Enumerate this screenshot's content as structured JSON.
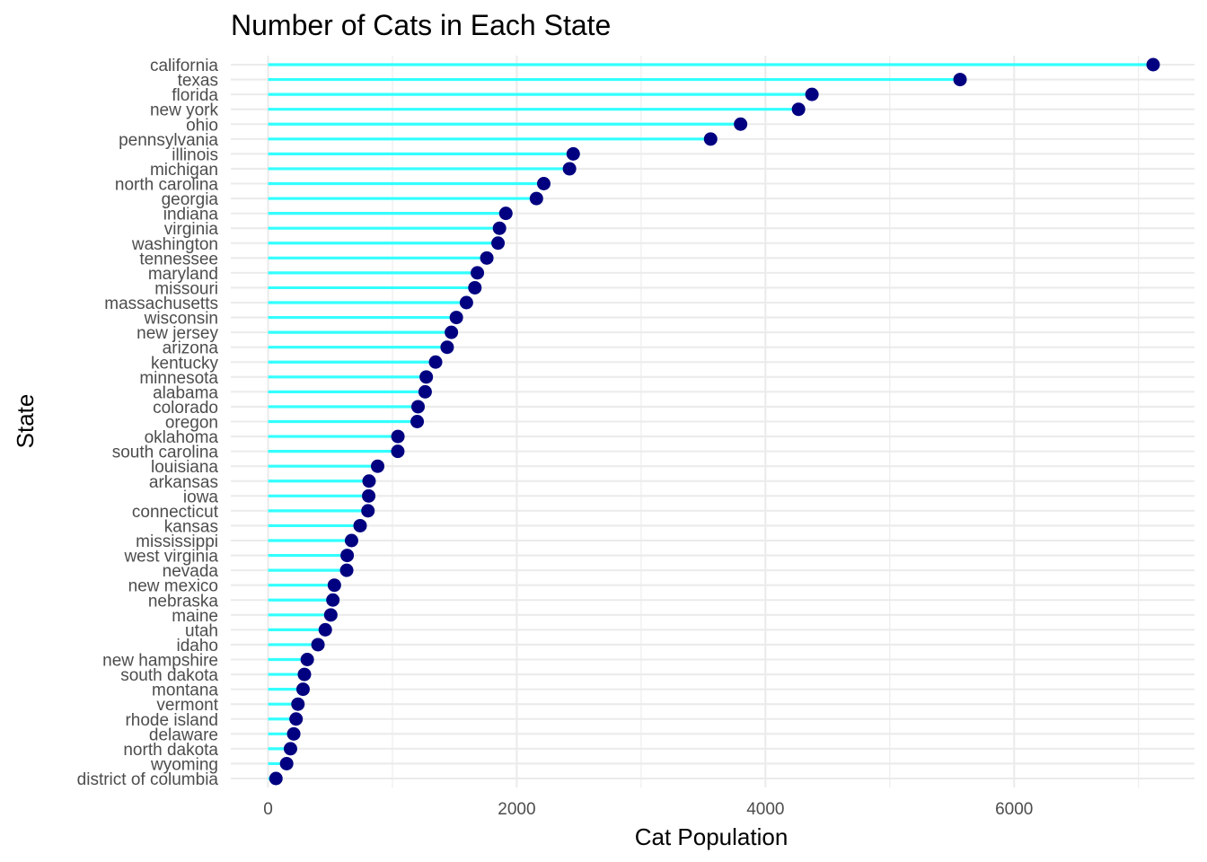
{
  "chart_data": {
    "type": "lollipop",
    "title": "Number of Cats in Each State",
    "xlabel": "Cat Population",
    "ylabel": "State",
    "xlim": [
      -300,
      7450
    ],
    "x_ticks": [
      0,
      2000,
      4000,
      6000
    ],
    "x_tick_labels": [
      "0",
      "2000",
      "4000",
      "6000"
    ],
    "grid": true,
    "stem_color": "#33ffff",
    "point_color": "#000080",
    "categories": [
      "california",
      "texas",
      "florida",
      "new york",
      "ohio",
      "pennsylvania",
      "illinois",
      "michigan",
      "north carolina",
      "georgia",
      "indiana",
      "virginia",
      "washington",
      "tennessee",
      "maryland",
      "missouri",
      "massachusetts",
      "wisconsin",
      "new jersey",
      "arizona",
      "kentucky",
      "minnesota",
      "alabama",
      "colorado",
      "oregon",
      "oklahoma",
      "south carolina",
      "louisiana",
      "arkansas",
      "iowa",
      "connecticut",
      "kansas",
      "mississippi",
      "west virginia",
      "nevada",
      "new mexico",
      "nebraska",
      "maine",
      "utah",
      "idaho",
      "new hampshire",
      "south dakota",
      "montana",
      "vermont",
      "rhode island",
      "delaware",
      "north dakota",
      "wyoming",
      "district of columbia"
    ],
    "values": [
      7118,
      5565,
      4374,
      4266,
      3800,
      3559,
      2454,
      2424,
      2217,
      2158,
      1912,
      1861,
      1849,
      1759,
      1683,
      1663,
      1595,
      1514,
      1474,
      1440,
      1347,
      1272,
      1263,
      1206,
      1199,
      1044,
      1043,
      881,
      812,
      809,
      803,
      740,
      671,
      636,
      632,
      533,
      521,
      504,
      460,
      401,
      315,
      292,
      281,
      240,
      225,
      206,
      180,
      149,
      63
    ]
  }
}
